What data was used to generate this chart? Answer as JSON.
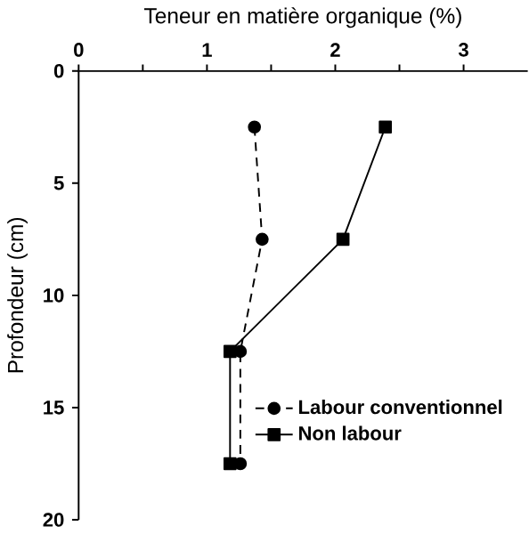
{
  "chart_data": {
    "type": "line",
    "xlabel": "Teneur en matière organique (%)",
    "ylabel": "Profondeur (cm)",
    "xlim": [
      0,
      3.5
    ],
    "xticks": [
      0,
      {
        "value": 0.5,
        "label": null
      },
      1,
      {
        "value": 1.5,
        "label": null
      },
      2,
      {
        "value": 2.5,
        "label": null
      },
      3
    ],
    "ylim": [
      20,
      0
    ],
    "yticks": [
      0,
      5,
      10,
      15,
      20
    ],
    "grid": false,
    "legend": "bottom right",
    "series": [
      {
        "name": "Labour conventionnel",
        "color": "#000000",
        "marker": "circle",
        "line_style": "dashed",
        "x": [
          1.37,
          1.43,
          1.26,
          1.26
        ],
        "values": [
          2.5,
          7.5,
          12.5,
          17.5
        ]
      },
      {
        "name": "Non labour",
        "color": "#000000",
        "marker": "square",
        "line_style": "solid",
        "x": [
          2.39,
          2.06,
          1.18,
          1.18
        ],
        "values": [
          2.5,
          7.5,
          12.5,
          17.5
        ]
      }
    ]
  }
}
